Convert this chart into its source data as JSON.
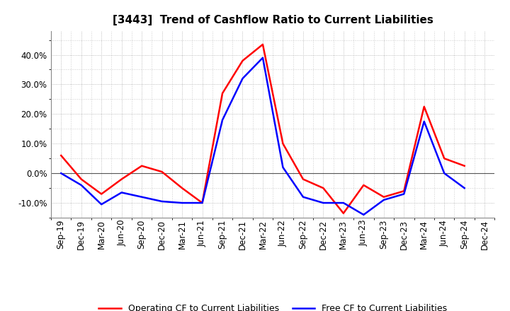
{
  "title": "[3443]  Trend of Cashflow Ratio to Current Liabilities",
  "x_labels": [
    "Sep-19",
    "Dec-19",
    "Mar-20",
    "Jun-20",
    "Sep-20",
    "Dec-20",
    "Mar-21",
    "Jun-21",
    "Sep-21",
    "Dec-21",
    "Mar-22",
    "Jun-22",
    "Sep-22",
    "Dec-22",
    "Mar-23",
    "Jun-23",
    "Sep-23",
    "Dec-23",
    "Mar-24",
    "Jun-24",
    "Sep-24",
    "Dec-24"
  ],
  "operating_cf": [
    0.06,
    -0.02,
    -0.07,
    -0.02,
    0.025,
    0.005,
    -0.05,
    -0.1,
    0.27,
    0.38,
    0.435,
    0.1,
    -0.02,
    -0.05,
    -0.135,
    -0.04,
    -0.08,
    -0.06,
    0.225,
    0.05,
    0.025,
    null
  ],
  "free_cf": [
    0.0,
    -0.04,
    -0.105,
    -0.065,
    -0.08,
    -0.095,
    -0.1,
    -0.1,
    0.18,
    0.32,
    0.39,
    0.02,
    -0.08,
    -0.1,
    -0.1,
    -0.14,
    -0.09,
    -0.07,
    0.175,
    0.0,
    -0.05,
    null
  ],
  "operating_color": "#ff0000",
  "free_color": "#0000ff",
  "ylim": [
    -0.15,
    0.48
  ],
  "yticks": [
    -0.1,
    0.0,
    0.1,
    0.2,
    0.3,
    0.4
  ],
  "legend_labels": [
    "Operating CF to Current Liabilities",
    "Free CF to Current Liabilities"
  ],
  "line_width": 1.8,
  "grid_color": "#aaaaaa",
  "title_fontsize": 11,
  "tick_fontsize": 8.5
}
